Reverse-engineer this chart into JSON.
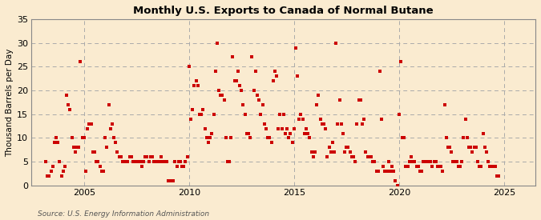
{
  "title": "Monthly U.S. Exports to Canada of Normal Butane",
  "ylabel": "Thousand Barrels per Day",
  "source": "Source: U.S. Energy Information Administration",
  "background_color": "#faebd0",
  "plot_bg_color": "#faebd0",
  "marker_color": "#cc0000",
  "ylim": [
    0,
    35
  ],
  "yticks": [
    0,
    5,
    10,
    15,
    20,
    25,
    30,
    35
  ],
  "xlim_start": 2002.5,
  "xlim_end": 2026.5,
  "xticks": [
    2005,
    2010,
    2015,
    2020,
    2025
  ],
  "data": [
    [
      2003.17,
      5
    ],
    [
      2003.25,
      2
    ],
    [
      2003.33,
      2
    ],
    [
      2003.42,
      3
    ],
    [
      2003.5,
      4
    ],
    [
      2003.58,
      9
    ],
    [
      2003.67,
      10
    ],
    [
      2003.75,
      9
    ],
    [
      2003.83,
      5
    ],
    [
      2003.92,
      2
    ],
    [
      2004.0,
      3
    ],
    [
      2004.08,
      4
    ],
    [
      2004.17,
      19
    ],
    [
      2004.25,
      17
    ],
    [
      2004.33,
      16
    ],
    [
      2004.42,
      10
    ],
    [
      2004.5,
      8
    ],
    [
      2004.58,
      7
    ],
    [
      2004.67,
      8
    ],
    [
      2004.75,
      8
    ],
    [
      2004.83,
      26
    ],
    [
      2004.92,
      10
    ],
    [
      2005.0,
      10
    ],
    [
      2005.08,
      3
    ],
    [
      2005.17,
      12
    ],
    [
      2005.25,
      13
    ],
    [
      2005.33,
      13
    ],
    [
      2005.42,
      7
    ],
    [
      2005.5,
      7
    ],
    [
      2005.58,
      5
    ],
    [
      2005.67,
      5
    ],
    [
      2005.75,
      4
    ],
    [
      2005.83,
      3
    ],
    [
      2005.92,
      3
    ],
    [
      2006.0,
      10
    ],
    [
      2006.08,
      8
    ],
    [
      2006.17,
      17
    ],
    [
      2006.25,
      12
    ],
    [
      2006.33,
      13
    ],
    [
      2006.42,
      10
    ],
    [
      2006.5,
      9
    ],
    [
      2006.58,
      7
    ],
    [
      2006.67,
      6
    ],
    [
      2006.75,
      6
    ],
    [
      2006.83,
      5
    ],
    [
      2006.92,
      5
    ],
    [
      2007.0,
      5
    ],
    [
      2007.08,
      5
    ],
    [
      2007.17,
      6
    ],
    [
      2007.25,
      6
    ],
    [
      2007.33,
      5
    ],
    [
      2007.42,
      5
    ],
    [
      2007.5,
      5
    ],
    [
      2007.58,
      5
    ],
    [
      2007.67,
      5
    ],
    [
      2007.75,
      4
    ],
    [
      2007.83,
      5
    ],
    [
      2007.92,
      6
    ],
    [
      2008.0,
      6
    ],
    [
      2008.08,
      5
    ],
    [
      2008.17,
      6
    ],
    [
      2008.25,
      6
    ],
    [
      2008.33,
      5
    ],
    [
      2008.42,
      5
    ],
    [
      2008.5,
      5
    ],
    [
      2008.58,
      5
    ],
    [
      2008.67,
      6
    ],
    [
      2008.75,
      5
    ],
    [
      2008.83,
      5
    ],
    [
      2008.92,
      5
    ],
    [
      2009.0,
      1
    ],
    [
      2009.08,
      1
    ],
    [
      2009.17,
      1
    ],
    [
      2009.25,
      1
    ],
    [
      2009.33,
      5
    ],
    [
      2009.42,
      4
    ],
    [
      2009.5,
      5
    ],
    [
      2009.58,
      5
    ],
    [
      2009.67,
      4
    ],
    [
      2009.75,
      4
    ],
    [
      2009.83,
      5
    ],
    [
      2009.92,
      6
    ],
    [
      2010.0,
      25
    ],
    [
      2010.08,
      14
    ],
    [
      2010.17,
      16
    ],
    [
      2010.25,
      21
    ],
    [
      2010.33,
      22
    ],
    [
      2010.42,
      21
    ],
    [
      2010.5,
      15
    ],
    [
      2010.58,
      15
    ],
    [
      2010.67,
      16
    ],
    [
      2010.75,
      12
    ],
    [
      2010.83,
      10
    ],
    [
      2010.92,
      9
    ],
    [
      2011.0,
      10
    ],
    [
      2011.08,
      11
    ],
    [
      2011.17,
      15
    ],
    [
      2011.25,
      24
    ],
    [
      2011.33,
      30
    ],
    [
      2011.42,
      20
    ],
    [
      2011.5,
      19
    ],
    [
      2011.58,
      19
    ],
    [
      2011.67,
      18
    ],
    [
      2011.75,
      10
    ],
    [
      2011.83,
      5
    ],
    [
      2011.92,
      5
    ],
    [
      2012.0,
      10
    ],
    [
      2012.08,
      27
    ],
    [
      2012.17,
      22
    ],
    [
      2012.25,
      22
    ],
    [
      2012.33,
      24
    ],
    [
      2012.42,
      21
    ],
    [
      2012.5,
      20
    ],
    [
      2012.58,
      17
    ],
    [
      2012.67,
      15
    ],
    [
      2012.75,
      11
    ],
    [
      2012.83,
      11
    ],
    [
      2012.92,
      10
    ],
    [
      2013.0,
      27
    ],
    [
      2013.08,
      20
    ],
    [
      2013.17,
      24
    ],
    [
      2013.25,
      19
    ],
    [
      2013.33,
      18
    ],
    [
      2013.42,
      15
    ],
    [
      2013.5,
      17
    ],
    [
      2013.58,
      13
    ],
    [
      2013.67,
      12
    ],
    [
      2013.75,
      10
    ],
    [
      2013.83,
      10
    ],
    [
      2013.92,
      9
    ],
    [
      2014.0,
      22
    ],
    [
      2014.08,
      24
    ],
    [
      2014.17,
      23
    ],
    [
      2014.25,
      12
    ],
    [
      2014.33,
      15
    ],
    [
      2014.42,
      12
    ],
    [
      2014.5,
      15
    ],
    [
      2014.58,
      11
    ],
    [
      2014.67,
      12
    ],
    [
      2014.75,
      10
    ],
    [
      2014.83,
      11
    ],
    [
      2014.92,
      9
    ],
    [
      2015.0,
      12
    ],
    [
      2015.08,
      29
    ],
    [
      2015.17,
      23
    ],
    [
      2015.25,
      14
    ],
    [
      2015.33,
      15
    ],
    [
      2015.42,
      14
    ],
    [
      2015.5,
      11
    ],
    [
      2015.58,
      12
    ],
    [
      2015.67,
      11
    ],
    [
      2015.75,
      10
    ],
    [
      2015.83,
      7
    ],
    [
      2015.92,
      6
    ],
    [
      2016.0,
      7
    ],
    [
      2016.08,
      17
    ],
    [
      2016.17,
      19
    ],
    [
      2016.25,
      14
    ],
    [
      2016.33,
      13
    ],
    [
      2016.42,
      13
    ],
    [
      2016.5,
      12
    ],
    [
      2016.58,
      6
    ],
    [
      2016.67,
      8
    ],
    [
      2016.75,
      7
    ],
    [
      2016.83,
      9
    ],
    [
      2016.92,
      7
    ],
    [
      2017.0,
      30
    ],
    [
      2017.08,
      13
    ],
    [
      2017.17,
      18
    ],
    [
      2017.25,
      13
    ],
    [
      2017.33,
      11
    ],
    [
      2017.42,
      7
    ],
    [
      2017.5,
      8
    ],
    [
      2017.58,
      8
    ],
    [
      2017.67,
      7
    ],
    [
      2017.75,
      6
    ],
    [
      2017.83,
      6
    ],
    [
      2017.92,
      5
    ],
    [
      2018.0,
      13
    ],
    [
      2018.08,
      18
    ],
    [
      2018.17,
      18
    ],
    [
      2018.25,
      13
    ],
    [
      2018.33,
      14
    ],
    [
      2018.42,
      7
    ],
    [
      2018.5,
      6
    ],
    [
      2018.58,
      6
    ],
    [
      2018.67,
      6
    ],
    [
      2018.75,
      5
    ],
    [
      2018.83,
      5
    ],
    [
      2018.92,
      3
    ],
    [
      2019.0,
      3
    ],
    [
      2019.08,
      24
    ],
    [
      2019.17,
      14
    ],
    [
      2019.25,
      4
    ],
    [
      2019.33,
      3
    ],
    [
      2019.42,
      3
    ],
    [
      2019.5,
      5
    ],
    [
      2019.58,
      3
    ],
    [
      2019.67,
      4
    ],
    [
      2019.75,
      3
    ],
    [
      2019.83,
      1
    ],
    [
      2019.92,
      0
    ],
    [
      2020.0,
      15
    ],
    [
      2020.08,
      26
    ],
    [
      2020.17,
      10
    ],
    [
      2020.25,
      10
    ],
    [
      2020.33,
      4
    ],
    [
      2020.42,
      4
    ],
    [
      2020.5,
      5
    ],
    [
      2020.58,
      6
    ],
    [
      2020.67,
      5
    ],
    [
      2020.75,
      5
    ],
    [
      2020.83,
      4
    ],
    [
      2020.92,
      4
    ],
    [
      2021.0,
      3
    ],
    [
      2021.08,
      3
    ],
    [
      2021.17,
      5
    ],
    [
      2021.25,
      5
    ],
    [
      2021.33,
      5
    ],
    [
      2021.42,
      5
    ],
    [
      2021.5,
      5
    ],
    [
      2021.58,
      4
    ],
    [
      2021.67,
      5
    ],
    [
      2021.75,
      5
    ],
    [
      2021.83,
      4
    ],
    [
      2021.92,
      4
    ],
    [
      2022.0,
      4
    ],
    [
      2022.08,
      3
    ],
    [
      2022.17,
      17
    ],
    [
      2022.25,
      10
    ],
    [
      2022.33,
      8
    ],
    [
      2022.42,
      8
    ],
    [
      2022.5,
      7
    ],
    [
      2022.58,
      5
    ],
    [
      2022.67,
      5
    ],
    [
      2022.75,
      5
    ],
    [
      2022.83,
      4
    ],
    [
      2022.92,
      4
    ],
    [
      2023.0,
      5
    ],
    [
      2023.08,
      10
    ],
    [
      2023.17,
      14
    ],
    [
      2023.25,
      10
    ],
    [
      2023.33,
      8
    ],
    [
      2023.42,
      8
    ],
    [
      2023.5,
      7
    ],
    [
      2023.58,
      8
    ],
    [
      2023.67,
      8
    ],
    [
      2023.75,
      5
    ],
    [
      2023.83,
      4
    ],
    [
      2023.92,
      4
    ],
    [
      2024.0,
      11
    ],
    [
      2024.08,
      8
    ],
    [
      2024.17,
      7
    ],
    [
      2024.25,
      5
    ],
    [
      2024.33,
      4
    ],
    [
      2024.42,
      4
    ],
    [
      2024.5,
      4
    ],
    [
      2024.58,
      4
    ],
    [
      2024.67,
      2
    ],
    [
      2024.75,
      2
    ]
  ]
}
